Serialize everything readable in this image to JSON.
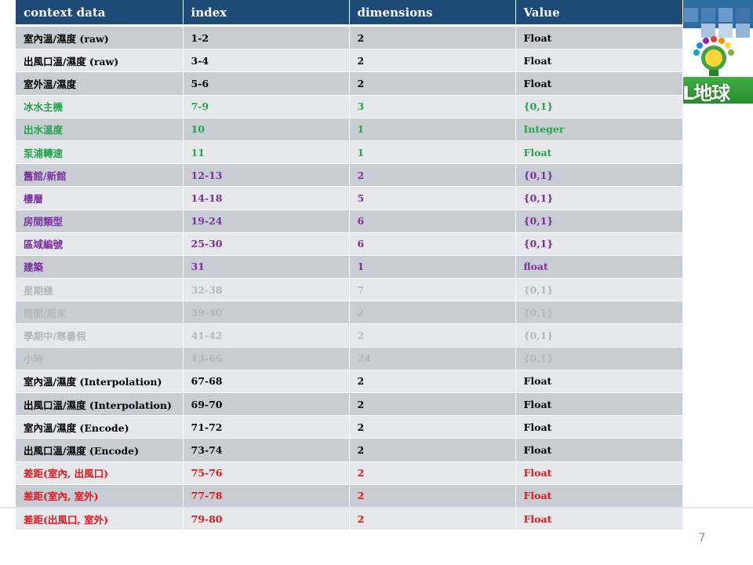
{
  "page": {
    "number": "7"
  },
  "logo": {
    "text": "L地球"
  },
  "colors": {
    "header_bg": "#1e4a78",
    "row_dark": "#c8ccd3",
    "row_light": "#e6e8ec",
    "black": "#000000",
    "green": "#22a64a",
    "purple": "#7b2fa0",
    "gray": "#b4b7bd",
    "red": "#e8141b"
  },
  "table": {
    "headers": [
      "context data",
      "index",
      "dimensions",
      "Value"
    ],
    "rows": [
      {
        "name": "室內溫/濕度 (raw)",
        "index": "1-2",
        "dim": "2",
        "value": "Float",
        "color": "black"
      },
      {
        "name": "出風口溫/濕度 (raw)",
        "index": "3-4",
        "dim": "2",
        "value": "Float",
        "color": "black"
      },
      {
        "name": "室外溫/濕度",
        "index": "5-6",
        "dim": "2",
        "value": "Float",
        "color": "black"
      },
      {
        "name": "冰水主機",
        "index": "7-9",
        "dim": "3",
        "value": "{0,1}",
        "color": "green"
      },
      {
        "name": "出水溫度",
        "index": "10",
        "dim": "1",
        "value": "Integer",
        "color": "green"
      },
      {
        "name": "泵浦轉速",
        "index": "11",
        "dim": "1",
        "value": "Float",
        "color": "green"
      },
      {
        "name": "舊館/新館",
        "index": "12-13",
        "dim": "2",
        "value": "{0,1}",
        "color": "purple"
      },
      {
        "name": "樓層",
        "index": "14-18",
        "dim": "5",
        "value": "{0,1}",
        "color": "purple"
      },
      {
        "name": "房間類型",
        "index": "19-24",
        "dim": "6",
        "value": "{0,1}",
        "color": "purple"
      },
      {
        "name": "區域編號",
        "index": "25-30",
        "dim": "6",
        "value": "{0,1}",
        "color": "purple"
      },
      {
        "name": "建築",
        "index": "31",
        "dim": "1",
        "value": "float",
        "color": "purple"
      },
      {
        "name": "星期幾",
        "index": "32-38",
        "dim": "7",
        "value": "{0,1}",
        "color": "gray"
      },
      {
        "name": "周間/周末",
        "index": "39-40",
        "dim": "2",
        "value": "{0,1}",
        "color": "gray"
      },
      {
        "name": "學期中/寒暑假",
        "index": "41-42",
        "dim": "2",
        "value": "{0,1}",
        "color": "gray"
      },
      {
        "name": "小時",
        "index": "43-66",
        "dim": "24",
        "value": "{0,1}",
        "color": "gray"
      },
      {
        "name": "室內溫/濕度 (Interpolation)",
        "index": "67-68",
        "dim": "2",
        "value": "Float",
        "color": "black"
      },
      {
        "name": "出風口溫/濕度 (Interpolation)",
        "index": "69-70",
        "dim": "2",
        "value": "Float",
        "color": "black"
      },
      {
        "name": "室內溫/濕度 (Encode)",
        "index": "71-72",
        "dim": "2",
        "value": "Float",
        "color": "black"
      },
      {
        "name": "出風口溫/濕度 (Encode)",
        "index": "73-74",
        "dim": "2",
        "value": "Float",
        "color": "black"
      },
      {
        "name": "差距(室內, 出風口)",
        "index": "75-76",
        "dim": "2",
        "value": "Float",
        "color": "red"
      },
      {
        "name": "差距(室內, 室外)",
        "index": "77-78",
        "dim": "2",
        "value": "Float",
        "color": "red"
      },
      {
        "name": "差距(出風口, 室外)",
        "index": "79-80",
        "dim": "2",
        "value": "Float",
        "color": "red"
      }
    ]
  }
}
